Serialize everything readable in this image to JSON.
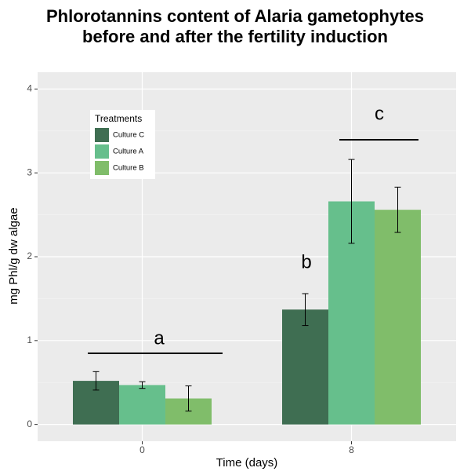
{
  "chart_data": {
    "type": "bar",
    "title": [
      "Phlorotannins content of Alaria gametophytes",
      "before and after the fertility induction"
    ],
    "x_label": "Time (days)",
    "y_label": "mg Phl/g dw algae",
    "categories": [
      "0",
      "8"
    ],
    "series": [
      {
        "name": "Culture C",
        "color": "#3f6e52",
        "values": [
          0.52,
          1.37
        ],
        "errors": [
          0.11,
          0.19
        ]
      },
      {
        "name": "Culture A",
        "color": "#66bf8c",
        "values": [
          0.47,
          2.66
        ],
        "errors": [
          0.04,
          0.5
        ]
      },
      {
        "name": "Culture B",
        "color": "#80bd6a",
        "values": [
          0.31,
          2.56
        ],
        "errors": [
          0.15,
          0.27
        ]
      }
    ],
    "ylim": [
      -0.2,
      4.2
    ],
    "yticks": [
      0,
      1,
      2,
      3,
      4
    ],
    "grid": true,
    "legend_title": "Treatments",
    "legend": "top-left",
    "annotations": [
      "a",
      "b",
      "c"
    ]
  }
}
